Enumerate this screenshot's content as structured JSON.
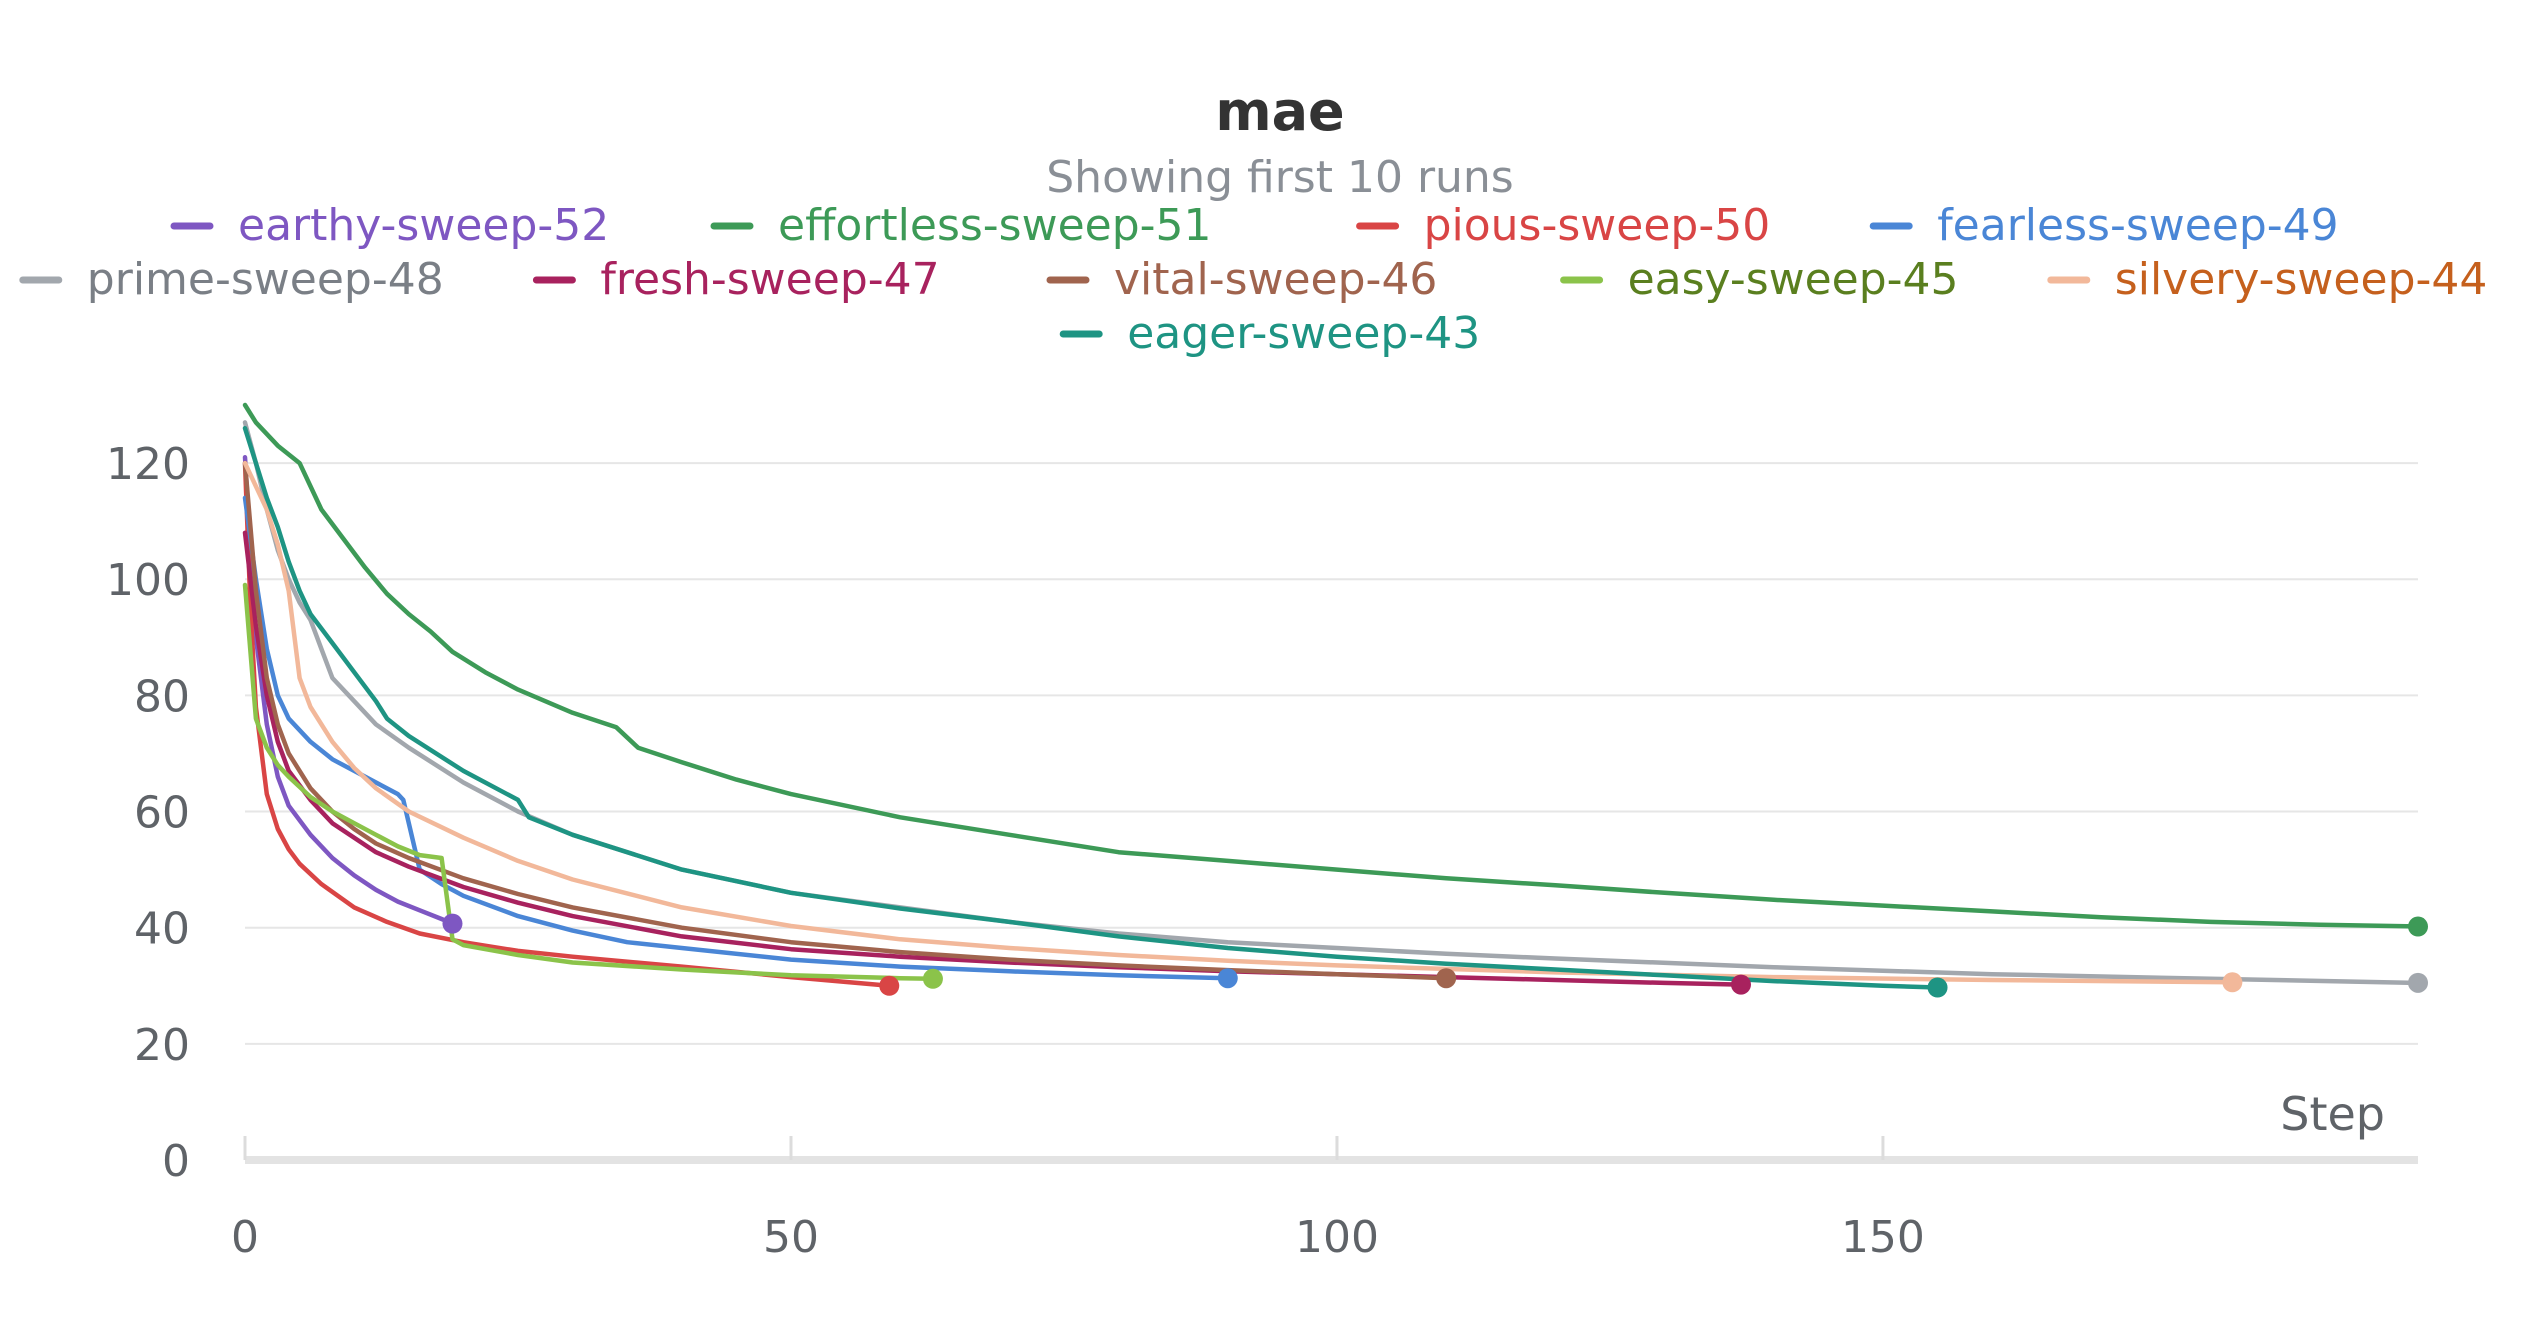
{
  "chart_data": {
    "type": "line",
    "title": "mae",
    "subtitle": "Showing first 10 runs",
    "xlabel": "Step",
    "ylabel": "",
    "xlim": [
      0,
      199
    ],
    "ylim": [
      0,
      130
    ],
    "xticks": [
      0,
      50,
      100,
      150
    ],
    "yticks": [
      0,
      20,
      40,
      60,
      80,
      100,
      120
    ],
    "grid": true,
    "legend_position": "top-center",
    "series": [
      {
        "name": "earthy-sweep-52",
        "color": "#7e57c2",
        "label_color": "#7e57c2",
        "points": [
          [
            0,
            121
          ],
          [
            1,
            90
          ],
          [
            2,
            75
          ],
          [
            3,
            66
          ],
          [
            4,
            61
          ],
          [
            6,
            56
          ],
          [
            8,
            52
          ],
          [
            10,
            49
          ],
          [
            12,
            46.5
          ],
          [
            14,
            44.5
          ],
          [
            16,
            43
          ],
          [
            18,
            41.5
          ],
          [
            19,
            40.7
          ]
        ]
      },
      {
        "name": "effortless-sweep-51",
        "color": "#3d9a57",
        "label_color": "#3d9a57",
        "points": [
          [
            0,
            130
          ],
          [
            1,
            127
          ],
          [
            3,
            123
          ],
          [
            5,
            120
          ],
          [
            7,
            112
          ],
          [
            9,
            107
          ],
          [
            11,
            102
          ],
          [
            13,
            97.5
          ],
          [
            15,
            94
          ],
          [
            17,
            91
          ],
          [
            19,
            87.5
          ],
          [
            22,
            84
          ],
          [
            25,
            81
          ],
          [
            30,
            77
          ],
          [
            34,
            74.5
          ],
          [
            36,
            71
          ],
          [
            40,
            68.5
          ],
          [
            45,
            65.5
          ],
          [
            50,
            63
          ],
          [
            60,
            59
          ],
          [
            70,
            56
          ],
          [
            80,
            53
          ],
          [
            90,
            51.5
          ],
          [
            100,
            50
          ],
          [
            110,
            48.5
          ],
          [
            120,
            47.3
          ],
          [
            130,
            46
          ],
          [
            140,
            44.8
          ],
          [
            150,
            43.8
          ],
          [
            160,
            42.8
          ],
          [
            170,
            41.8
          ],
          [
            180,
            41
          ],
          [
            190,
            40.5
          ],
          [
            199,
            40.2
          ]
        ]
      },
      {
        "name": "pious-sweep-50",
        "color": "#d94545",
        "label_color": "#d94545",
        "points": [
          [
            0,
            120
          ],
          [
            0.5,
            95
          ],
          [
            1,
            78
          ],
          [
            2,
            63
          ],
          [
            3,
            57
          ],
          [
            4,
            53.5
          ],
          [
            5,
            51
          ],
          [
            7,
            47.5
          ],
          [
            10,
            43.5
          ],
          [
            13,
            41
          ],
          [
            16,
            39
          ],
          [
            20,
            37.5
          ],
          [
            25,
            36
          ],
          [
            30,
            35
          ],
          [
            40,
            33.3
          ],
          [
            50,
            31.5
          ],
          [
            59,
            30
          ]
        ]
      },
      {
        "name": "fearless-sweep-49",
        "color": "#4a86d6",
        "label_color": "#4a86d6",
        "points": [
          [
            0,
            114
          ],
          [
            1,
            100
          ],
          [
            2,
            88
          ],
          [
            3,
            80
          ],
          [
            4,
            76
          ],
          [
            6,
            72
          ],
          [
            8,
            69
          ],
          [
            10,
            67
          ],
          [
            12,
            65
          ],
          [
            14,
            63
          ],
          [
            14.5,
            62
          ],
          [
            15,
            58
          ],
          [
            16,
            50
          ],
          [
            18,
            47.5
          ],
          [
            20,
            45.5
          ],
          [
            25,
            42
          ],
          [
            30,
            39.5
          ],
          [
            35,
            37.5
          ],
          [
            40,
            36.5
          ],
          [
            50,
            34.5
          ],
          [
            60,
            33.3
          ],
          [
            70,
            32.5
          ],
          [
            80,
            31.8
          ],
          [
            90,
            31.3
          ]
        ]
      },
      {
        "name": "prime-sweep-48",
        "color": "#a2a7ad",
        "label_color": "#7a7f86",
        "points": [
          [
            0,
            127
          ],
          [
            1,
            120
          ],
          [
            2,
            112
          ],
          [
            3,
            105
          ],
          [
            4,
            100
          ],
          [
            5,
            96
          ],
          [
            6,
            93
          ],
          [
            7,
            88
          ],
          [
            8,
            83
          ],
          [
            10,
            79
          ],
          [
            12,
            75
          ],
          [
            15,
            71
          ],
          [
            20,
            65
          ],
          [
            25,
            60
          ],
          [
            30,
            56
          ],
          [
            40,
            50
          ],
          [
            50,
            46
          ],
          [
            60,
            43.5
          ],
          [
            70,
            41
          ],
          [
            80,
            39
          ],
          [
            90,
            37.5
          ],
          [
            100,
            36.5
          ],
          [
            110,
            35.5
          ],
          [
            120,
            34.7
          ],
          [
            140,
            33.2
          ],
          [
            160,
            32
          ],
          [
            180,
            31.2
          ],
          [
            199,
            30.5
          ]
        ]
      },
      {
        "name": "fresh-sweep-47",
        "color": "#a8225e",
        "label_color": "#a8225e",
        "points": [
          [
            0,
            108
          ],
          [
            1,
            92
          ],
          [
            2,
            80
          ],
          [
            3,
            72
          ],
          [
            4,
            67
          ],
          [
            6,
            62
          ],
          [
            8,
            58
          ],
          [
            10,
            55.5
          ],
          [
            12,
            53
          ],
          [
            15,
            50.5
          ],
          [
            20,
            47
          ],
          [
            25,
            44.3
          ],
          [
            30,
            42
          ],
          [
            40,
            38.5
          ],
          [
            50,
            36.3
          ],
          [
            60,
            35
          ],
          [
            70,
            34
          ],
          [
            80,
            33.2
          ],
          [
            90,
            32.5
          ],
          [
            100,
            32
          ],
          [
            110,
            31.5
          ],
          [
            120,
            31
          ],
          [
            130,
            30.5
          ],
          [
            137,
            30.2
          ]
        ]
      },
      {
        "name": "vital-sweep-46",
        "color": "#a0644e",
        "label_color": "#a0644e",
        "points": [
          [
            0,
            120
          ],
          [
            1,
            98
          ],
          [
            2,
            83
          ],
          [
            3,
            75
          ],
          [
            4,
            70
          ],
          [
            6,
            64
          ],
          [
            8,
            60
          ],
          [
            10,
            57
          ],
          [
            12,
            54.5
          ],
          [
            15,
            52
          ],
          [
            20,
            48.5
          ],
          [
            25,
            45.8
          ],
          [
            30,
            43.5
          ],
          [
            40,
            40
          ],
          [
            50,
            37.5
          ],
          [
            60,
            35.8
          ],
          [
            70,
            34.5
          ],
          [
            80,
            33.5
          ],
          [
            90,
            32.7
          ],
          [
            100,
            32
          ],
          [
            110,
            31.3
          ]
        ]
      },
      {
        "name": "easy-sweep-45",
        "color": "#8bc34a",
        "label_color": "#5a7f1f",
        "points": [
          [
            0,
            99
          ],
          [
            1,
            76
          ],
          [
            2,
            71
          ],
          [
            3,
            68
          ],
          [
            4,
            66
          ],
          [
            6,
            62.5
          ],
          [
            8,
            60
          ],
          [
            10,
            58
          ],
          [
            12,
            56
          ],
          [
            14,
            54
          ],
          [
            16,
            52.5
          ],
          [
            18,
            52
          ],
          [
            19,
            38
          ],
          [
            20,
            37
          ],
          [
            25,
            35.3
          ],
          [
            30,
            34
          ],
          [
            40,
            32.8
          ],
          [
            50,
            31.8
          ],
          [
            60,
            31.3
          ],
          [
            63,
            31.2
          ]
        ]
      },
      {
        "name": "silvery-sweep-44",
        "color": "#f2b89a",
        "label_color": "#c5601d",
        "points": [
          [
            0,
            120
          ],
          [
            1,
            116
          ],
          [
            2,
            112
          ],
          [
            3,
            106
          ],
          [
            4,
            98
          ],
          [
            5,
            83
          ],
          [
            6,
            78
          ],
          [
            8,
            72
          ],
          [
            10,
            67.5
          ],
          [
            12,
            64
          ],
          [
            15,
            60
          ],
          [
            20,
            55.5
          ],
          [
            25,
            51.5
          ],
          [
            30,
            48.3
          ],
          [
            40,
            43.5
          ],
          [
            50,
            40.3
          ],
          [
            60,
            38
          ],
          [
            70,
            36.5
          ],
          [
            80,
            35.3
          ],
          [
            90,
            34.3
          ],
          [
            100,
            33.5
          ],
          [
            120,
            32.3
          ],
          [
            140,
            31.5
          ],
          [
            160,
            31
          ],
          [
            182,
            30.6
          ]
        ]
      },
      {
        "name": "eager-sweep-43",
        "color": "#1e9483",
        "label_color": "#1e9483",
        "points": [
          [
            0,
            126
          ],
          [
            1,
            120
          ],
          [
            2,
            114
          ],
          [
            3,
            109
          ],
          [
            4,
            103
          ],
          [
            5,
            98
          ],
          [
            6,
            94
          ],
          [
            8,
            89
          ],
          [
            10,
            84
          ],
          [
            12,
            79
          ],
          [
            13,
            76
          ],
          [
            15,
            73
          ],
          [
            20,
            67
          ],
          [
            25,
            62
          ],
          [
            26,
            59
          ],
          [
            30,
            56
          ],
          [
            40,
            50
          ],
          [
            50,
            46
          ],
          [
            60,
            43.3
          ],
          [
            70,
            41
          ],
          [
            80,
            38.5
          ],
          [
            90,
            36.5
          ],
          [
            100,
            35
          ],
          [
            110,
            33.8
          ],
          [
            120,
            32.8
          ],
          [
            130,
            31.8
          ],
          [
            140,
            30.8
          ],
          [
            150,
            30
          ],
          [
            155,
            29.7
          ]
        ]
      }
    ]
  }
}
